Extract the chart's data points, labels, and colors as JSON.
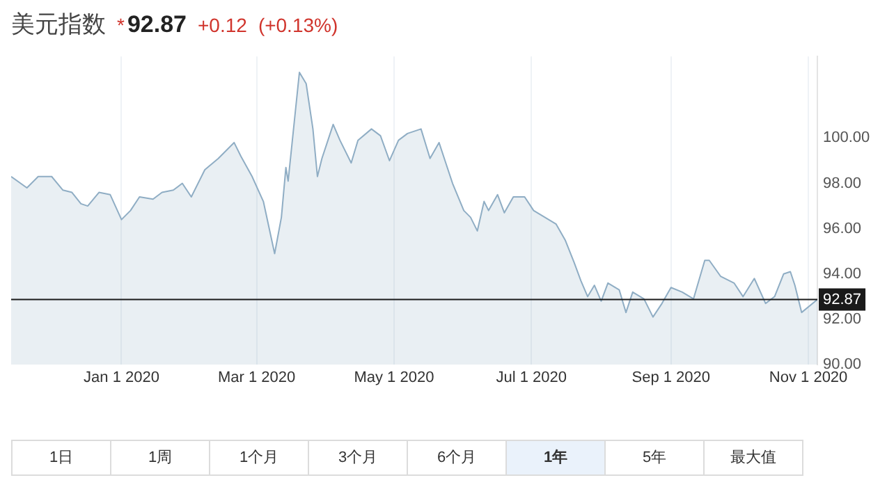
{
  "chart_data": {
    "type": "area",
    "title": "美元指数",
    "annotations": [
      "*",
      "92.87",
      "+0.12",
      "(+0.13%)",
      "1日",
      "1周",
      "1个月",
      "3个月",
      "6个月",
      "1年",
      "5年",
      "最大值"
    ],
    "x": [
      "2019-11-13",
      "2019-11-20",
      "2019-11-25",
      "2019-12-01",
      "2019-12-06",
      "2019-12-10",
      "2019-12-14",
      "2019-12-17",
      "2019-12-22",
      "2019-12-27",
      "2020-01-01",
      "2020-01-05",
      "2020-01-09",
      "2020-01-15",
      "2020-01-19",
      "2020-01-24",
      "2020-01-28",
      "2020-02-01",
      "2020-02-07",
      "2020-02-13",
      "2020-02-20",
      "2020-02-23",
      "2020-02-28",
      "2020-03-04",
      "2020-03-09",
      "2020-03-12",
      "2020-03-14",
      "2020-03-15",
      "2020-03-20",
      "2020-03-23",
      "2020-03-26",
      "2020-03-28",
      "2020-03-30",
      "2020-04-04",
      "2020-04-07",
      "2020-04-12",
      "2020-04-15",
      "2020-04-21",
      "2020-04-25",
      "2020-04-29",
      "2020-05-03",
      "2020-05-07",
      "2020-05-13",
      "2020-05-17",
      "2020-05-21",
      "2020-05-24",
      "2020-05-27",
      "2020-06-01",
      "2020-06-04",
      "2020-06-07",
      "2020-06-10",
      "2020-06-12",
      "2020-06-16",
      "2020-06-19",
      "2020-06-23",
      "2020-06-28",
      "2020-07-02",
      "2020-07-07",
      "2020-07-12",
      "2020-07-16",
      "2020-07-20",
      "2020-07-23",
      "2020-07-26",
      "2020-07-29",
      "2020-08-01",
      "2020-08-04",
      "2020-08-09",
      "2020-08-12",
      "2020-08-15",
      "2020-08-20",
      "2020-08-24",
      "2020-08-28",
      "2020-09-01",
      "2020-09-06",
      "2020-09-11",
      "2020-09-16",
      "2020-09-18",
      "2020-09-23",
      "2020-09-29",
      "2020-10-03",
      "2020-10-08",
      "2020-10-13",
      "2020-10-17",
      "2020-10-21",
      "2020-10-24",
      "2020-10-26",
      "2020-10-29",
      "2020-11-05"
    ],
    "series": [
      {
        "color": "#8fadc4",
        "values": [
          98.3,
          97.8,
          98.3,
          98.3,
          97.7,
          97.6,
          97.1,
          97.0,
          97.6,
          97.5,
          96.4,
          96.8,
          97.4,
          97.3,
          97.6,
          97.7,
          98.0,
          97.4,
          98.6,
          99.1,
          99.8,
          99.2,
          98.3,
          97.2,
          94.9,
          96.5,
          98.7,
          98.1,
          102.9,
          102.4,
          100.4,
          98.3,
          99.1,
          100.6,
          99.9,
          98.9,
          99.9,
          100.4,
          100.1,
          99.0,
          99.9,
          100.2,
          100.4,
          99.1,
          99.8,
          98.9,
          98.0,
          96.8,
          96.5,
          95.9,
          97.2,
          96.8,
          97.5,
          96.7,
          97.4,
          97.4,
          96.8,
          96.5,
          96.2,
          95.5,
          94.5,
          93.7,
          93.0,
          93.5,
          92.8,
          93.6,
          93.3,
          92.3,
          93.2,
          92.9,
          92.1,
          92.7,
          93.4,
          93.2,
          92.9,
          94.6,
          94.6,
          93.9,
          93.6,
          93.0,
          93.8,
          92.7,
          93.0,
          94.0,
          94.1,
          93.5,
          92.3,
          92.87
        ]
      }
    ],
    "xlim": [
      "2019-11-13",
      "2020-11-05"
    ],
    "xticks": [
      {
        "value": "2020-01-01",
        "label": "Jan 1 2020"
      },
      {
        "value": "2020-03-01",
        "label": "Mar 1 2020"
      },
      {
        "value": "2020-05-01",
        "label": "May 1 2020"
      },
      {
        "value": "2020-07-01",
        "label": "Jul 1 2020"
      },
      {
        "value": "2020-09-01",
        "label": "Sep 1 2020"
      },
      {
        "value": "2020-11-01",
        "label": "Nov 1 2020"
      }
    ],
    "ylim": [
      90,
      103.6
    ],
    "yticks": [
      {
        "value": 90,
        "label": "90.00"
      },
      {
        "value": 92,
        "label": "92.00"
      },
      {
        "value": 94,
        "label": "94.00"
      },
      {
        "value": 96,
        "label": "96.00"
      },
      {
        "value": 98,
        "label": "98.00"
      },
      {
        "value": 100,
        "label": "100.00"
      }
    ],
    "ref_lines": [
      {
        "axis": "y",
        "value": 92.87,
        "label": "92.87",
        "color": "#1a1a1a"
      }
    ],
    "grid": "x",
    "legend": false
  }
}
